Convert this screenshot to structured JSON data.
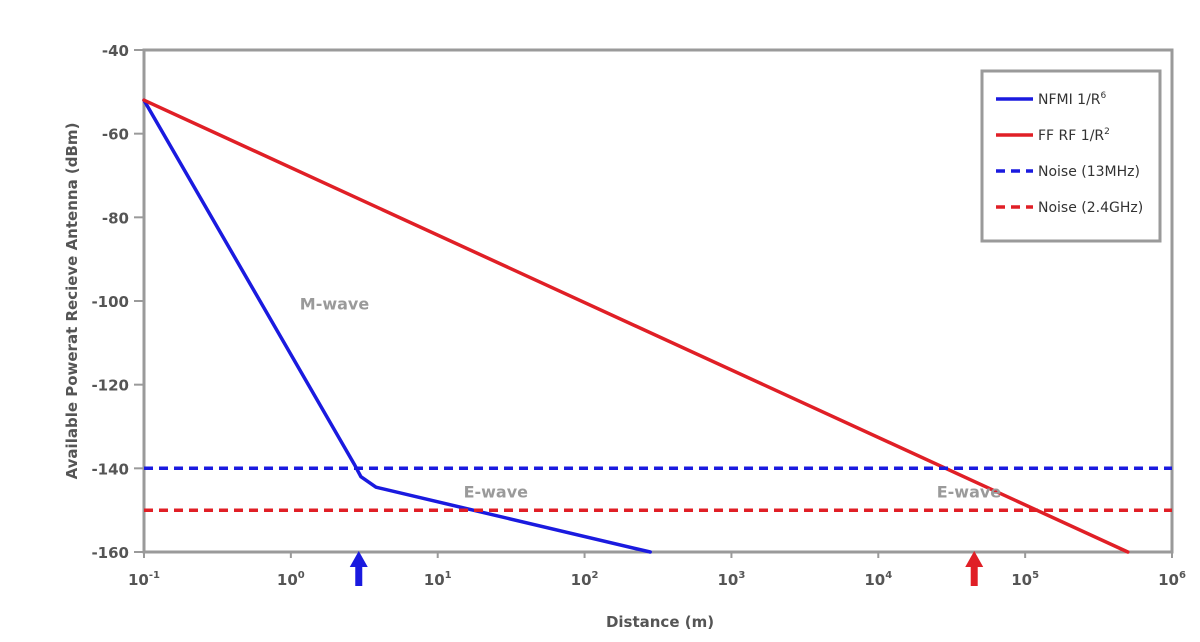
{
  "chart_data": {
    "type": "line",
    "title": "",
    "xlabel": "Distance (m)",
    "ylabel": "Available Powerat Recieve Antenna (dBm)",
    "xscale": "log",
    "xlim": [
      0.1,
      1000000
    ],
    "ylim": [
      -160,
      -40
    ],
    "grid": false,
    "legend_position": "top-right",
    "x_ticks": [
      {
        "value": 0.1,
        "base": "10",
        "exp": "-1"
      },
      {
        "value": 1,
        "base": "10",
        "exp": "0"
      },
      {
        "value": 10,
        "base": "10",
        "exp": "1"
      },
      {
        "value": 100,
        "base": "10",
        "exp": "2"
      },
      {
        "value": 1000,
        "base": "10",
        "exp": "3"
      },
      {
        "value": 10000,
        "base": "10",
        "exp": "4"
      },
      {
        "value": 100000,
        "base": "10",
        "exp": "5"
      },
      {
        "value": 1000000,
        "base": "10",
        "exp": "6"
      }
    ],
    "y_ticks": [
      {
        "value": -40,
        "label": "-40"
      },
      {
        "value": -60,
        "label": "-60"
      },
      {
        "value": -80,
        "label": "-80"
      },
      {
        "value": -100,
        "label": "-100"
      },
      {
        "value": -120,
        "label": "-120"
      },
      {
        "value": -140,
        "label": "-140"
      },
      {
        "value": -160,
        "label": "-160"
      }
    ],
    "series": [
      {
        "name": "NFMI 1/R",
        "name_sup": "6",
        "color": "#1a1adf",
        "dash": "solid",
        "points": [
          [
            0.1,
            -52
          ],
          [
            2.7,
            -139
          ],
          [
            3.0,
            -142
          ],
          [
            3.8,
            -144.5
          ],
          [
            280,
            -160
          ]
        ]
      },
      {
        "name": "FF RF 1/R",
        "name_sup": "2",
        "color": "#e01f26",
        "dash": "solid",
        "points": [
          [
            0.1,
            -52
          ],
          [
            500000,
            -160
          ]
        ]
      },
      {
        "name": "Noise (13MHz)",
        "color": "#1a1adf",
        "dash": "dashed",
        "points": [
          [
            0.1,
            -140
          ],
          [
            1000000,
            -140
          ]
        ]
      },
      {
        "name": "Noise (2.4GHz)",
        "color": "#e01f26",
        "dash": "dashed",
        "points": [
          [
            0.1,
            -150
          ],
          [
            1000000,
            -150
          ]
        ]
      }
    ],
    "annotations": [
      {
        "text": "M-wave",
        "x": 1.15,
        "y": -102
      },
      {
        "text": "E-wave",
        "x": 15,
        "y": -147
      },
      {
        "text": "E-wave",
        "x": 25000,
        "y": -147
      }
    ],
    "markers": [
      {
        "x": 2.9,
        "color": "#1a1adf"
      },
      {
        "x": 45000,
        "color": "#e01f26"
      }
    ]
  }
}
